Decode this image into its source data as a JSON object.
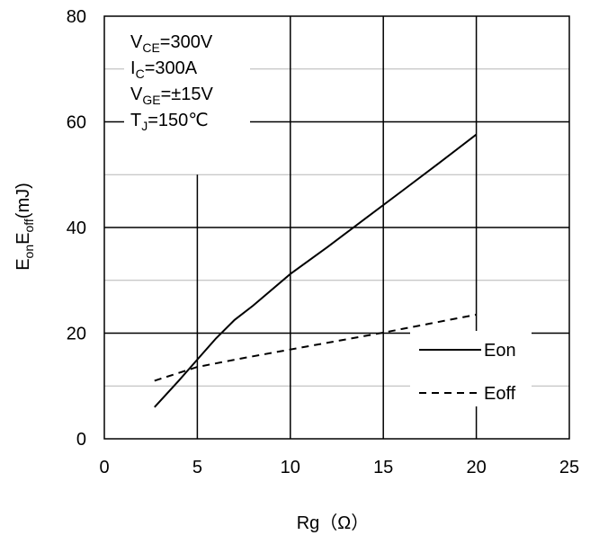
{
  "chart_data": {
    "type": "line",
    "xlabel": "Rg（Ω）",
    "ylabel": {
      "base": "E",
      "sub1": "on",
      "mid": "E",
      "sub2": "off",
      "unit": "(mJ)"
    },
    "xlim": [
      0,
      25
    ],
    "ylim": [
      0,
      80
    ],
    "xticks": [
      0,
      5,
      10,
      15,
      20,
      25
    ],
    "yticks": [
      0,
      20,
      40,
      60,
      80
    ],
    "grid": true,
    "legend_position": "bottom-right",
    "conditions": [
      {
        "base": "V",
        "sub": "CE",
        "rest": "=300V"
      },
      {
        "base": "I",
        "sub": "C",
        "rest": "=300A"
      },
      {
        "base": "V",
        "sub": "GE",
        "rest": "=±15V"
      },
      {
        "base": "T",
        "sub": "J",
        "rest": "=150℃"
      }
    ],
    "series": [
      {
        "name": "Eon",
        "style": "solid",
        "color": "#000000",
        "x": [
          2.7,
          4,
          5,
          6,
          7,
          8,
          10,
          12,
          14,
          16,
          18,
          20
        ],
        "y": [
          6,
          11,
          15,
          19,
          22.5,
          25.2,
          31.2,
          36.3,
          41.6,
          46.9,
          52.2,
          57.6
        ]
      },
      {
        "name": "Eoff",
        "style": "dashed",
        "color": "#000000",
        "x": [
          2.7,
          5,
          7.5,
          10,
          12.5,
          15,
          17.5,
          20
        ],
        "y": [
          11,
          13.6,
          15.3,
          16.9,
          18.5,
          20.1,
          21.8,
          23.5
        ]
      }
    ]
  }
}
